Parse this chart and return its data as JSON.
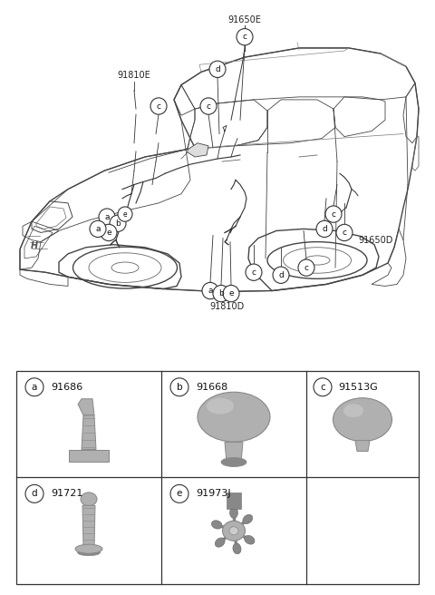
{
  "bg_color": "#ffffff",
  "fig_width": 4.8,
  "fig_height": 6.56,
  "dpi": 100,
  "parts": [
    {
      "label": "a",
      "part_no": "91686",
      "col": 0,
      "row": 0
    },
    {
      "label": "b",
      "part_no": "91668",
      "col": 1,
      "row": 0
    },
    {
      "label": "c",
      "part_no": "91513G",
      "col": 2,
      "row": 0
    },
    {
      "label": "d",
      "part_no": "91721",
      "col": 0,
      "row": 1
    },
    {
      "label": "e",
      "part_no": "91973J",
      "col": 1,
      "row": 1
    }
  ],
  "line_color": "#444444",
  "lw_main": 1.0,
  "lw_detail": 0.6,
  "callout_r": 0.018,
  "callout_fs": 6.0,
  "label_fs": 7.0,
  "table_lw": 0.9,
  "table_edge": "#333333",
  "grey": "#b0b0b0",
  "dark_grey": "#888888",
  "light_grey": "#cccccc"
}
